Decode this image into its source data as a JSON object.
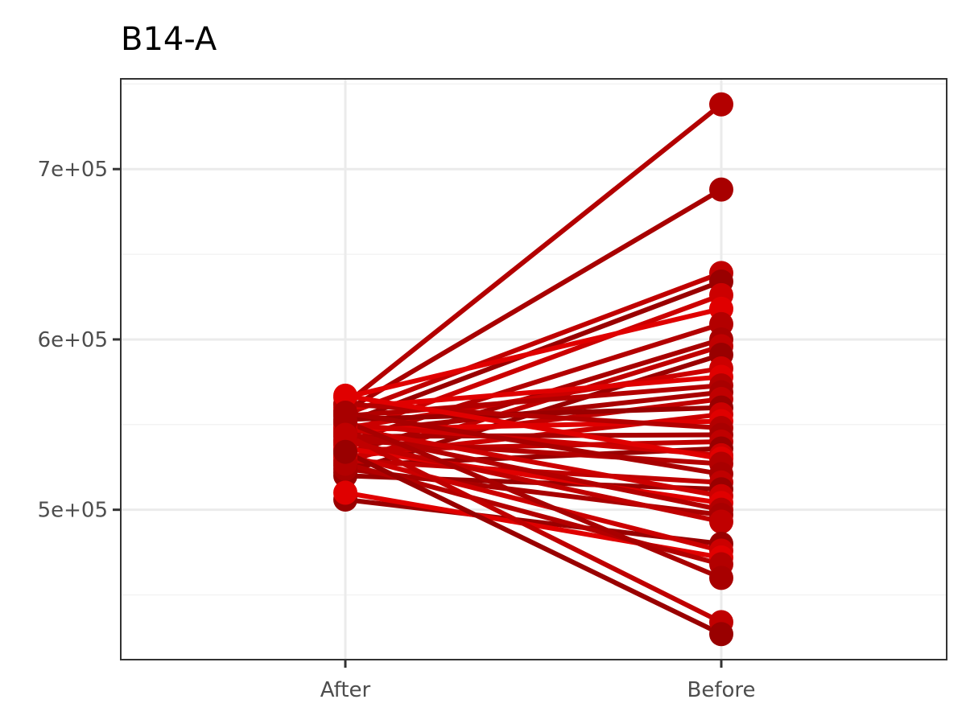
{
  "chart_data": {
    "type": "line",
    "title": "B14-A",
    "xlabel": "",
    "ylabel": "",
    "categories": [
      "After",
      "Before"
    ],
    "y_ticks": [
      {
        "value": 500000,
        "label": "5e+05"
      },
      {
        "value": 600000,
        "label": "6e+05"
      },
      {
        "value": 700000,
        "label": "7e+05"
      }
    ],
    "ylim": [
      412000,
      753000
    ],
    "grid": true,
    "legend": "none",
    "colors": {
      "panel_border": "#333333",
      "grid_major": "#ebebeb",
      "grid_minor": "#f3f3f3",
      "tick": "#333333",
      "line_palette": [
        "#b30000",
        "#a80000",
        "#c00000",
        "#990000",
        "#cc0000",
        "#e00000"
      ]
    },
    "pairs": [
      {
        "after": 562000,
        "before": 738000
      },
      {
        "after": 558000,
        "before": 688000
      },
      {
        "after": 556000,
        "before": 639000
      },
      {
        "after": 551000,
        "before": 634000
      },
      {
        "after": 545000,
        "before": 626000
      },
      {
        "after": 566000,
        "before": 618000
      },
      {
        "after": 540000,
        "before": 609000
      },
      {
        "after": 533000,
        "before": 600000
      },
      {
        "after": 528000,
        "before": 596000
      },
      {
        "after": 522000,
        "before": 591000
      },
      {
        "after": 548000,
        "before": 583000
      },
      {
        "after": 560000,
        "before": 578000
      },
      {
        "after": 555000,
        "before": 573000
      },
      {
        "after": 545000,
        "before": 569000
      },
      {
        "after": 538000,
        "before": 565000
      },
      {
        "after": 553000,
        "before": 560000
      },
      {
        "after": 531000,
        "before": 556000
      },
      {
        "after": 547000,
        "before": 552000
      },
      {
        "after": 562000,
        "before": 548000
      },
      {
        "after": 543000,
        "before": 544000
      },
      {
        "after": 535000,
        "before": 540000
      },
      {
        "after": 526000,
        "before": 536000
      },
      {
        "after": 550000,
        "before": 532000
      },
      {
        "after": 567000,
        "before": 530000
      },
      {
        "after": 541000,
        "before": 527000
      },
      {
        "after": 557000,
        "before": 521000
      },
      {
        "after": 529000,
        "before": 516000
      },
      {
        "after": 520000,
        "before": 512000
      },
      {
        "after": 548000,
        "before": 508000
      },
      {
        "after": 536000,
        "before": 504000
      },
      {
        "after": 545000,
        "before": 500000
      },
      {
        "after": 524000,
        "before": 497000
      },
      {
        "after": 540000,
        "before": 493000
      },
      {
        "after": 506000,
        "before": 480000
      },
      {
        "after": 532000,
        "before": 476000
      },
      {
        "after": 510000,
        "before": 472000
      },
      {
        "after": 527000,
        "before": 468000
      },
      {
        "after": 552000,
        "before": 460000
      },
      {
        "after": 544000,
        "before": 434000
      },
      {
        "after": 534000,
        "before": 427000
      }
    ]
  }
}
